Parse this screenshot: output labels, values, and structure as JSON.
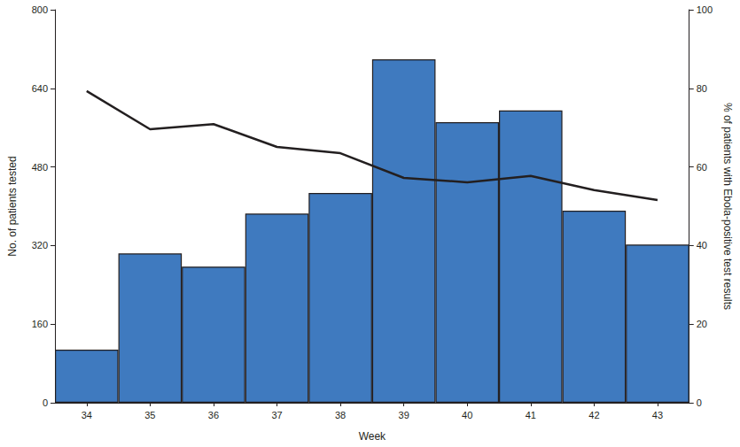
{
  "chart_data": {
    "type": "bar",
    "x_label": "Week",
    "y_label": "No. of patients tested",
    "y2_label": "% of patients with Ebola-positive test results",
    "categories": [
      "34",
      "35",
      "36",
      "37",
      "38",
      "39",
      "40",
      "41",
      "42",
      "43"
    ],
    "ylim": [
      0,
      800
    ],
    "yticks": [
      0,
      160,
      320,
      480,
      640,
      800
    ],
    "y2lim": [
      0,
      100
    ],
    "y2ticks": [
      0,
      20,
      40,
      60,
      80,
      100
    ],
    "grid": false,
    "series": [
      {
        "type": "bar",
        "color": "#3f7abf",
        "values": [
          108,
          304,
          277,
          385,
          427,
          699,
          571,
          595,
          391,
          322
        ]
      },
      {
        "type": "line",
        "axis": "y2",
        "color": "#231f20",
        "line_style": "solid",
        "values": [
          79.3,
          69.6,
          70.9,
          65.1,
          63.5,
          57.2,
          56.1,
          57.7,
          54.1,
          51.6
        ]
      }
    ]
  }
}
